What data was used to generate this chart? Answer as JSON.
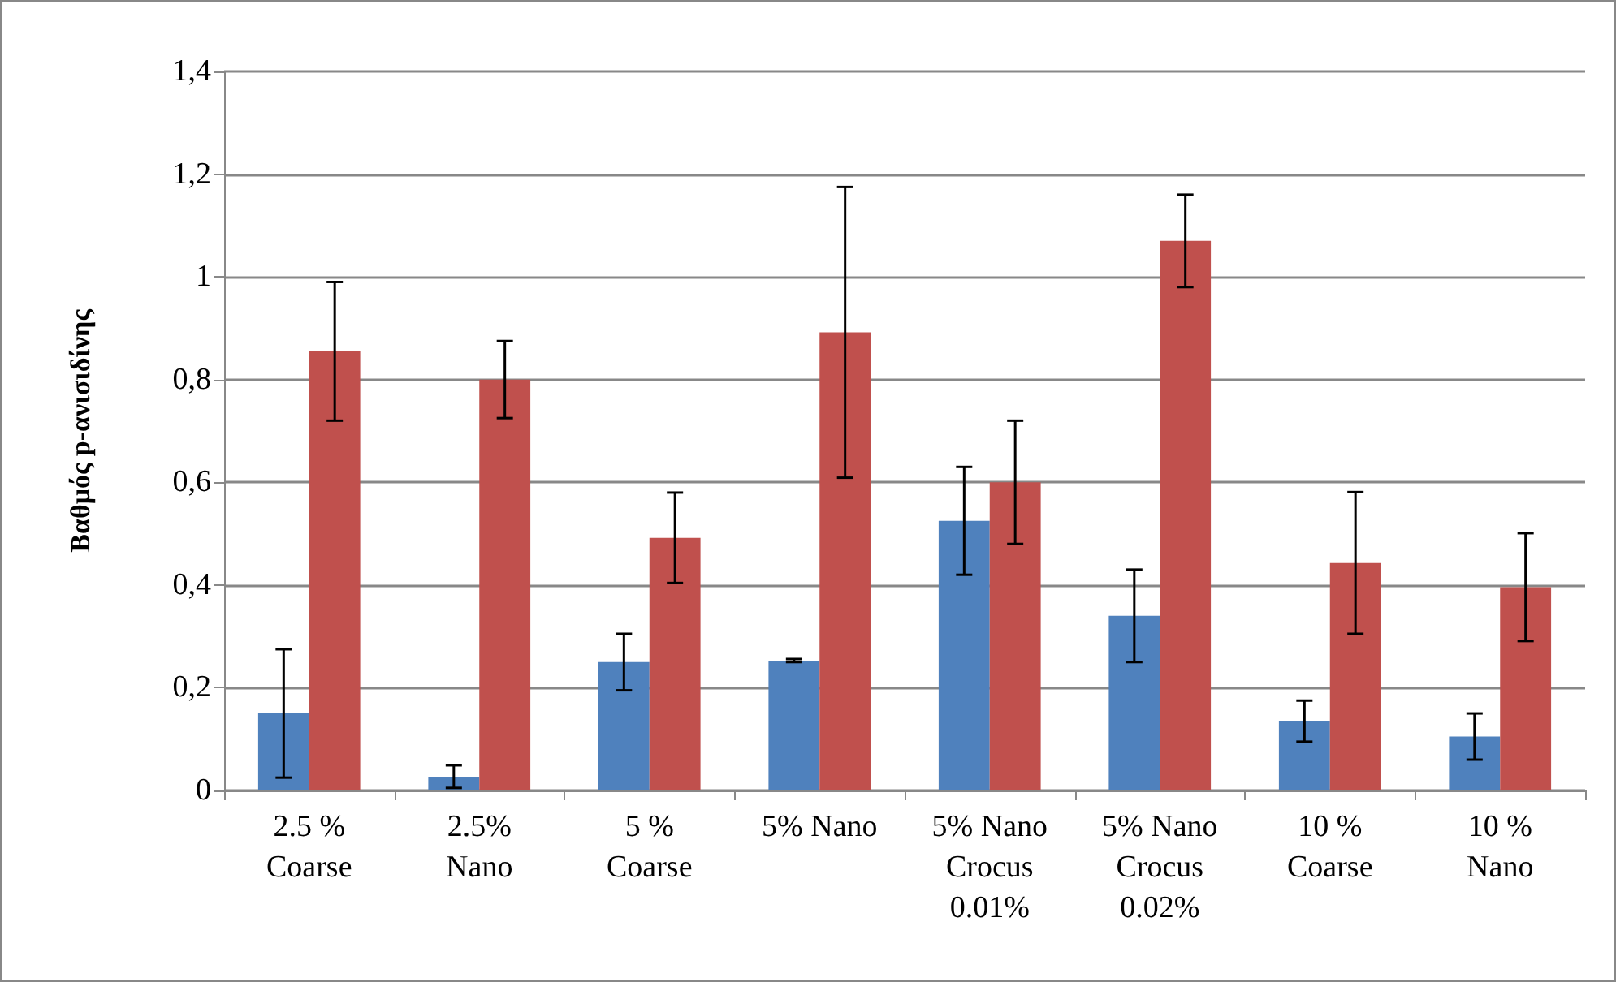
{
  "chart_data": {
    "type": "bar",
    "ylabel": "Βαθμός p-ανισιδίνης",
    "categories": [
      "2.5 %\nCoarse",
      "2.5%\nNano",
      "5 %\nCoarse",
      "5% Nano",
      "5% Nano\nCrocus\n0.01%",
      "5% Nano\nCrocus\n0.02%",
      "10 %\nCoarse",
      "10 %\nNano"
    ],
    "series": [
      {
        "color": "#4f81bd",
        "values": [
          0.15,
          0.027,
          0.25,
          0.253,
          0.525,
          0.34,
          0.135,
          0.105
        ],
        "errors": [
          0.125,
          0.022,
          0.055,
          0.003,
          0.105,
          0.09,
          0.04,
          0.045
        ]
      },
      {
        "color": "#c0504d",
        "values": [
          0.855,
          0.8,
          0.492,
          0.892,
          0.6,
          1.07,
          0.443,
          0.396
        ],
        "errors": [
          0.135,
          0.075,
          0.088,
          0.283,
          0.12,
          0.09,
          0.138,
          0.105
        ]
      }
    ],
    "ylim": [
      0,
      1.4
    ],
    "yticks": [
      0,
      {
        "value": 0.2,
        "label": "0,2"
      },
      {
        "value": 0.4,
        "label": "0,4"
      },
      {
        "value": 0.6,
        "label": "0,6"
      },
      {
        "value": 0.8,
        "label": "0,8"
      },
      1,
      {
        "value": 1.2,
        "label": "1,2"
      },
      {
        "value": 1.4,
        "label": "1,4"
      }
    ],
    "grid": "y"
  }
}
